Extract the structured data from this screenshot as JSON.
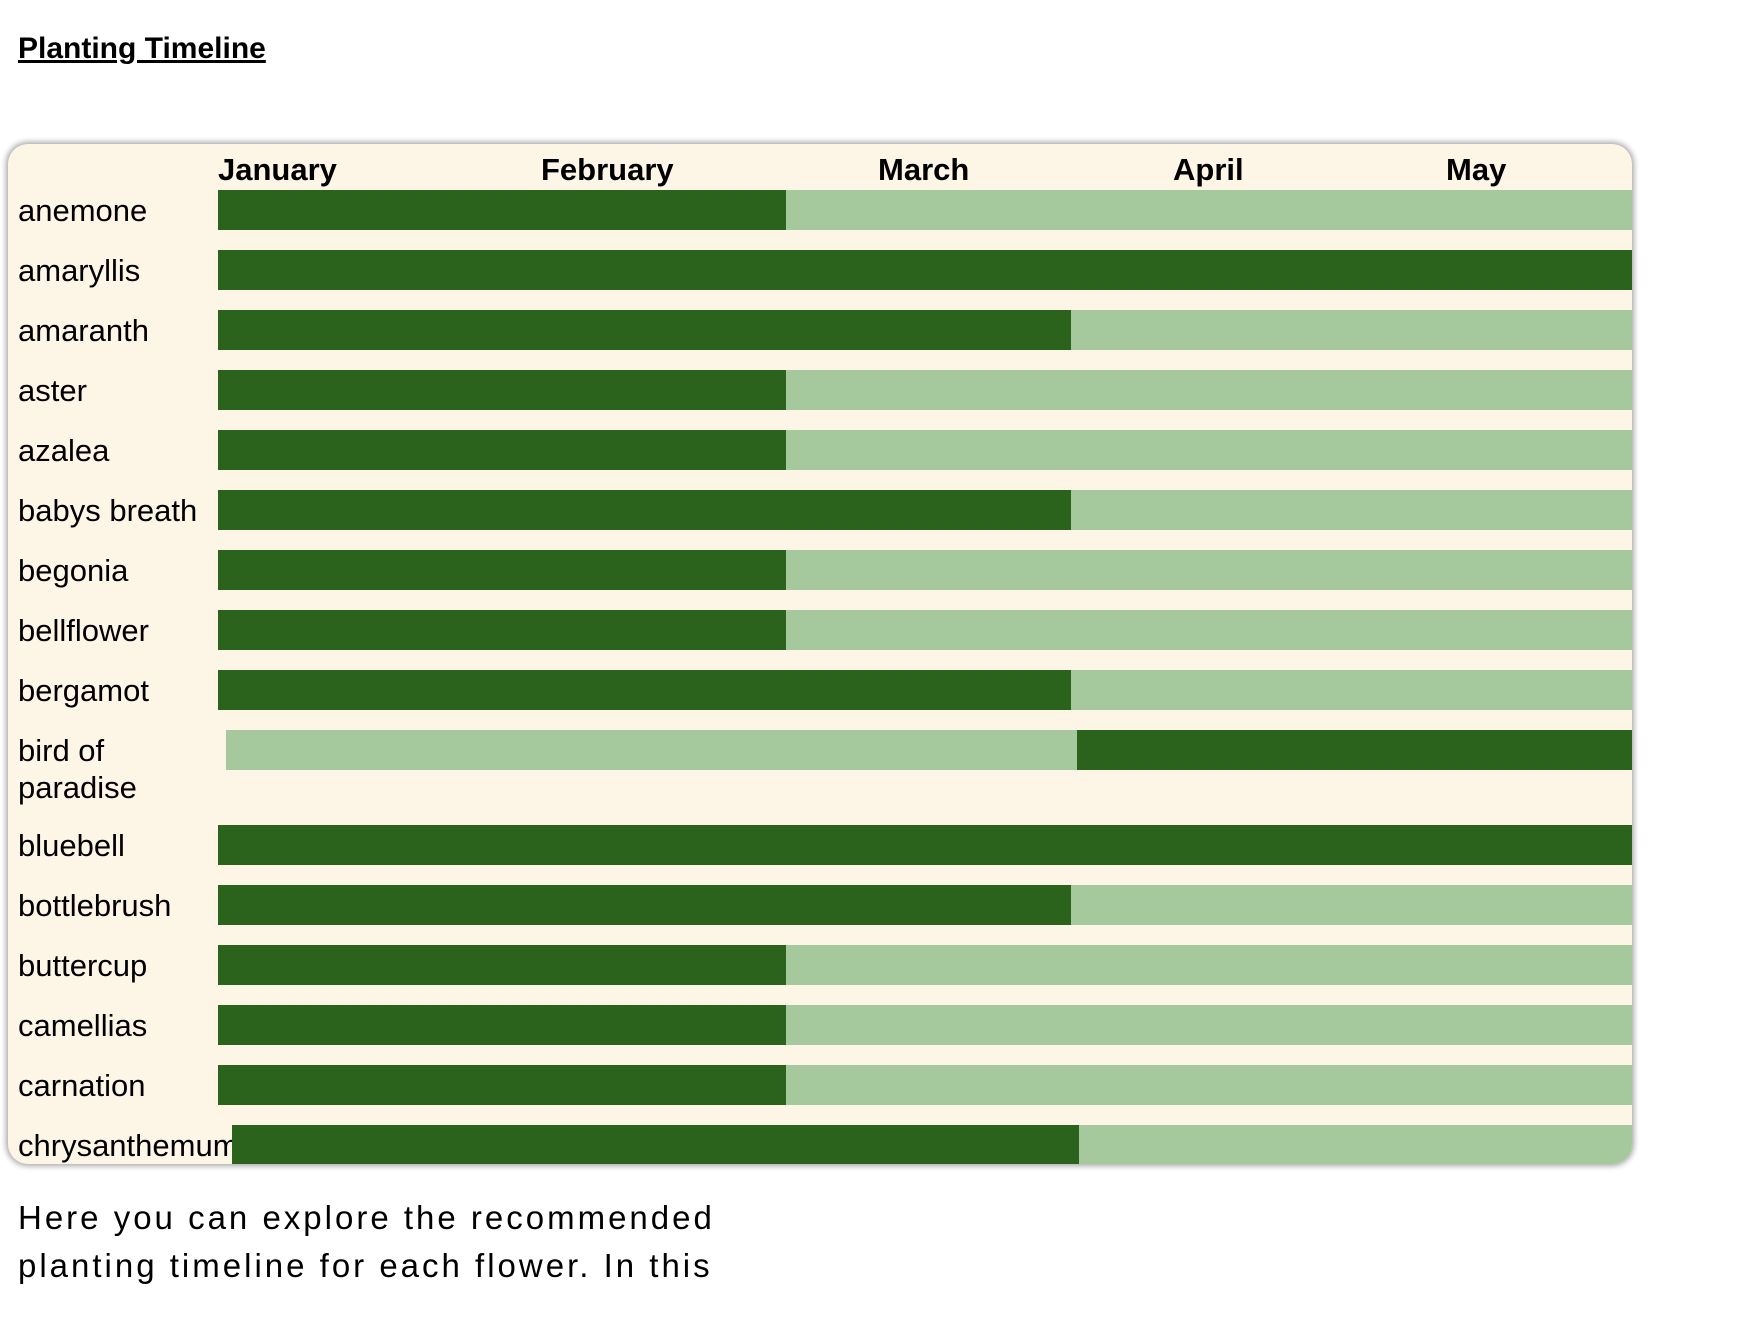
{
  "page": {
    "title": "Planting Timeline",
    "description": "Here you can explore the recommended planting timeline for each flower. In this"
  },
  "timeline": {
    "months": [
      "January",
      "February",
      "March",
      "April",
      "May"
    ],
    "colors": {
      "panel_background": "#fdf5e6",
      "dark_segment": "#2b631c",
      "light_segment": "#a5c89c"
    },
    "flowers": [
      {
        "name": "anemone",
        "segments": [
          {
            "tone": "dark",
            "fraction": 0.402
          },
          {
            "tone": "light",
            "fraction": 0.598
          }
        ]
      },
      {
        "name": "amaryllis",
        "segments": [
          {
            "tone": "dark",
            "fraction": 1.0
          }
        ]
      },
      {
        "name": "amaranth",
        "segments": [
          {
            "tone": "dark",
            "fraction": 0.603
          },
          {
            "tone": "light",
            "fraction": 0.397
          }
        ]
      },
      {
        "name": "aster",
        "segments": [
          {
            "tone": "dark",
            "fraction": 0.402
          },
          {
            "tone": "light",
            "fraction": 0.598
          }
        ]
      },
      {
        "name": "azalea",
        "segments": [
          {
            "tone": "dark",
            "fraction": 0.402
          },
          {
            "tone": "light",
            "fraction": 0.598
          }
        ]
      },
      {
        "name": "babys breath",
        "segments": [
          {
            "tone": "dark",
            "fraction": 0.603
          },
          {
            "tone": "light",
            "fraction": 0.397
          }
        ]
      },
      {
        "name": "begonia",
        "segments": [
          {
            "tone": "dark",
            "fraction": 0.402
          },
          {
            "tone": "light",
            "fraction": 0.598
          }
        ]
      },
      {
        "name": "bellflower",
        "segments": [
          {
            "tone": "dark",
            "fraction": 0.402
          },
          {
            "tone": "light",
            "fraction": 0.598
          }
        ]
      },
      {
        "name": "bergamot",
        "segments": [
          {
            "tone": "dark",
            "fraction": 0.603
          },
          {
            "tone": "light",
            "fraction": 0.397
          }
        ]
      },
      {
        "name": "bird of paradise",
        "segments": [
          {
            "tone": "light",
            "fraction": 0.605
          },
          {
            "tone": "dark",
            "fraction": 0.395
          }
        ]
      },
      {
        "name": "bluebell",
        "segments": [
          {
            "tone": "dark",
            "fraction": 1.0
          }
        ]
      },
      {
        "name": "bottlebrush",
        "segments": [
          {
            "tone": "dark",
            "fraction": 0.603
          },
          {
            "tone": "light",
            "fraction": 0.397
          }
        ]
      },
      {
        "name": "buttercup",
        "segments": [
          {
            "tone": "dark",
            "fraction": 0.402
          },
          {
            "tone": "light",
            "fraction": 0.598
          }
        ]
      },
      {
        "name": "camellias",
        "segments": [
          {
            "tone": "dark",
            "fraction": 0.402
          },
          {
            "tone": "light",
            "fraction": 0.598
          }
        ]
      },
      {
        "name": "carnation",
        "segments": [
          {
            "tone": "dark",
            "fraction": 0.402
          },
          {
            "tone": "light",
            "fraction": 0.598
          }
        ]
      },
      {
        "name": "chrysanthemum",
        "segments": [
          {
            "tone": "dark",
            "fraction": 0.605
          },
          {
            "tone": "light",
            "fraction": 0.395
          }
        ]
      }
    ]
  }
}
